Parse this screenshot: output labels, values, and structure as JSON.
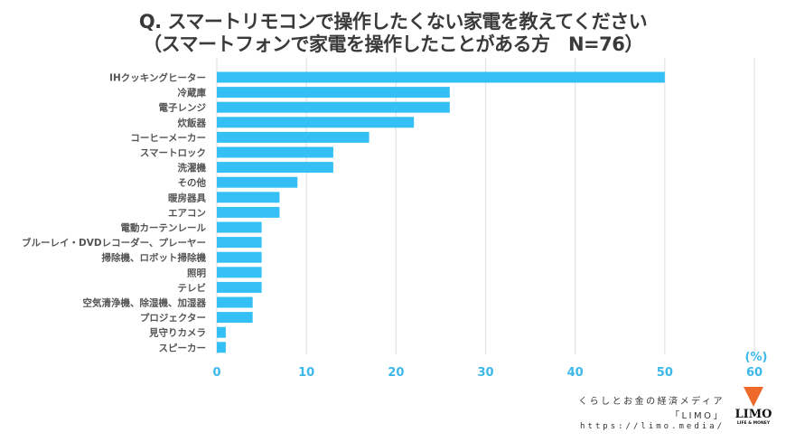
{
  "chart_data": {
    "type": "bar",
    "orientation": "horizontal",
    "title": "Q. スマートリモコンで操作したくない家電を教えてください",
    "subtitle": "（スマートフォンで家電を操作したことがある方　N=76）",
    "xlabel": "(%)",
    "ylabel": "",
    "xlim": [
      0,
      60
    ],
    "xticks": [
      0,
      10,
      20,
      30,
      40,
      50,
      60
    ],
    "grid": true,
    "bar_color": "#35c0f5",
    "categories": [
      "IHクッキングヒーター",
      "冷蔵庫",
      "電子レンジ",
      "炊飯器",
      "コーヒーメーカー",
      "スマートロック",
      "洗濯機",
      "その他",
      "暖房器具",
      "エアコン",
      "電動カーテンレール",
      "ブルーレイ・DVDレコーダー、プレーヤー",
      "掃除機、ロボット掃除機",
      "照明",
      "テレビ",
      "空気清浄機、除湿機、加湿器",
      "プロジェクター",
      "見守りカメラ",
      "スピーカー"
    ],
    "values": [
      50,
      26,
      26,
      22,
      17,
      13,
      13,
      9,
      7,
      7,
      5,
      5,
      5,
      5,
      5,
      4,
      4,
      1,
      1
    ]
  },
  "footer": {
    "line1": "くらしとお金の経済メディア",
    "line2": "「LIMO」",
    "line3": "https://limo.media/"
  },
  "logo": {
    "name": "LIMO",
    "tagline": "LIFE & MONEY",
    "icon": "fox-head-icon",
    "color": "#ee6a2a"
  }
}
